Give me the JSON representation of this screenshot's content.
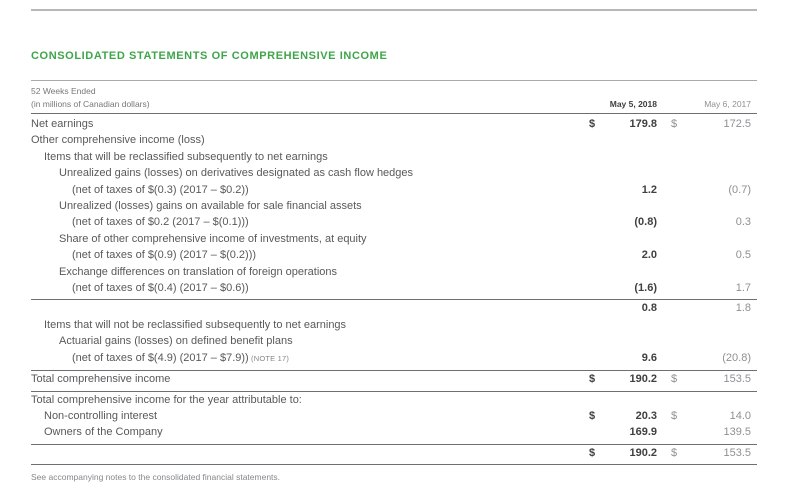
{
  "page": {
    "title": "CONSOLIDATED STATEMENTS OF COMPREHENSIVE INCOME",
    "footnote": "See accompanying notes to the consolidated financial statements."
  },
  "colors": {
    "accent_green": "#3ea54a"
  },
  "table": {
    "period_label": "52 Weeks Ended",
    "units_label": "(in millions of Canadian dollars)",
    "columns": [
      "May 5, 2018",
      "May 6, 2017"
    ],
    "rows": [
      {
        "label": "Net earnings",
        "indent": 0,
        "d18": "$",
        "v18": "179.8",
        "d17": "$",
        "v17": "172.5"
      },
      {
        "label": "Other comprehensive income (loss)",
        "indent": 0
      },
      {
        "label": "Items that will be reclassified subsequently to net earnings",
        "indent": 1
      },
      {
        "label": "Unrealized gains (losses) on derivatives designated as cash flow hedges",
        "indent": 2
      },
      {
        "label": "(net of taxes of $(0.3) (2017 – $0.2))",
        "indent": 3,
        "v18": "1.2",
        "v17": "(0.7)"
      },
      {
        "label": "Unrealized (losses) gains on available for sale financial assets",
        "indent": 2
      },
      {
        "label": "(net of taxes of $0.2 (2017 – $(0.1)))",
        "indent": 3,
        "v18": "(0.8)",
        "v17": "0.3"
      },
      {
        "label": "Share of other comprehensive income of investments, at equity",
        "indent": 2
      },
      {
        "label": "(net of taxes of $(0.9) (2017 – $(0.2)))",
        "indent": 3,
        "v18": "2.0",
        "v17": "0.5"
      },
      {
        "label": "Exchange differences on translation of foreign operations",
        "indent": 2
      },
      {
        "label": "(net of taxes of $(0.4) (2017 – $0.6))",
        "indent": 3,
        "v18": "(1.6)",
        "v17": "1.7",
        "rule_below": true
      },
      {
        "label": "",
        "indent": 0,
        "v18": "0.8",
        "v17": "1.8"
      },
      {
        "label": "Items that will not be reclassified subsequently to net earnings",
        "indent": 1
      },
      {
        "label": "Actuarial gains (losses) on defined benefit plans",
        "indent": 2
      },
      {
        "label": "(net of taxes of $(4.9) (2017 – $7.9))",
        "note": "(NOTE 17)",
        "indent": 3,
        "v18": "9.6",
        "v17": "(20.8)",
        "rule_below": true
      },
      {
        "label": "Total comprehensive income",
        "indent": 0,
        "d18": "$",
        "v18": "190.2",
        "d17": "$",
        "v17": "153.5",
        "rule_below": true
      },
      {
        "label": "Total comprehensive income for the year attributable to:",
        "indent": 0
      },
      {
        "label": "Non-controlling interest",
        "indent": 1,
        "d18": "$",
        "v18": "20.3",
        "d17": "$",
        "v17": "14.0"
      },
      {
        "label": "Owners of the Company",
        "indent": 1,
        "v18": "169.9",
        "v17": "139.5",
        "rule_below": true
      },
      {
        "label": "",
        "indent": 0,
        "d18": "$",
        "v18": "190.2",
        "d17": "$",
        "v17": "153.5",
        "rule_below": true
      }
    ]
  }
}
